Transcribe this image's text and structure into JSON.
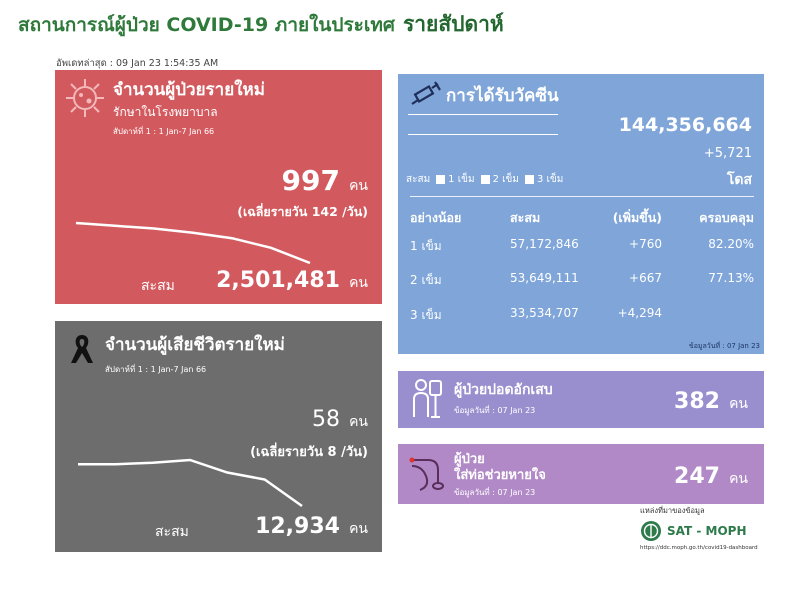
{
  "header": {
    "title": "สถานการณ์ผู้ป่วย COVID-19 ภายในประเทศ",
    "weekly": "รายสัปดาห์",
    "updated": "อัพเดทล่าสุด : 09 Jan 23 1:54:35 AM"
  },
  "cases": {
    "title": "จำนวนผู้ป่วยรายใหม่",
    "subtitle": "รักษาในโรงพยาบาล",
    "week": "สัปดาห์ที่ 1 : 1 Jan-7 Jan 66",
    "value": "997",
    "unit": "คน",
    "average": "(เฉลี่ยรายวัน 142 /วัน)",
    "cumulative_label": "สะสม",
    "cumulative": "2,501,481",
    "cumulative_unit": "คน",
    "trend": [
      100,
      98,
      96,
      93,
      89,
      82,
      71
    ],
    "color": "#d25a5f"
  },
  "deaths": {
    "title": "จำนวนผู้เสียชีวิตรายใหม่",
    "week": "สัปดาห์ที่ 1 : 1 Jan-7 Jan 66",
    "value": "58",
    "unit": "คน",
    "average": "(เฉลี่ยรายวัน 8 /วัน)",
    "cumulative_label": "สะสม",
    "cumulative": "12,934",
    "cumulative_unit": "คน",
    "trend": [
      100,
      100,
      101,
      103,
      94,
      89,
      70
    ],
    "color": "#6d6d6d"
  },
  "vaccine": {
    "title": "การได้รับวัคซีน",
    "total": "144,356,664",
    "increase": "+5,721",
    "dose_unit": "โดส",
    "legend_prefix": "สะสม",
    "legend": [
      "1 เข็ม",
      "2 เข็ม",
      "3 เข็ม"
    ],
    "headers": [
      "อย่างน้อย",
      "สะสม",
      "(เพิ่มขึ้น)",
      "ครอบคลุม"
    ],
    "rows": [
      {
        "dose": "1 เข็ม",
        "cum": "57,172,846",
        "inc": "+760",
        "cov": "82.20%"
      },
      {
        "dose": "2 เข็ม",
        "cum": "53,649,111",
        "inc": "+667",
        "cov": "77.13%"
      },
      {
        "dose": "3 เข็ม",
        "cum": "33,534,707",
        "inc": "+4,294",
        "cov": ""
      }
    ],
    "data_date": "ข้อมูลวันที่ : 07 Jan 23",
    "color": "#7fa5d9"
  },
  "pneumonia": {
    "title": "ผู้ป่วยปอดอักเสบ",
    "data_date": "ข้อมูลวันที่ : 07 Jan 23",
    "value": "382",
    "unit": "คน",
    "color": "#9a8fce"
  },
  "ventilator": {
    "title1": "ผู้ป่วย",
    "title2": "ใส่ท่อช่วยหายใจ",
    "data_date": "ข้อมูลวันที่ : 07 Jan 23",
    "value": "247",
    "unit": "คน",
    "color": "#b089c6"
  },
  "source": {
    "label": "แหล่งที่มาของข้อมูล",
    "org": "SAT - MOPH",
    "url": "https://ddc.moph.go.th/covid19-dashboard"
  }
}
